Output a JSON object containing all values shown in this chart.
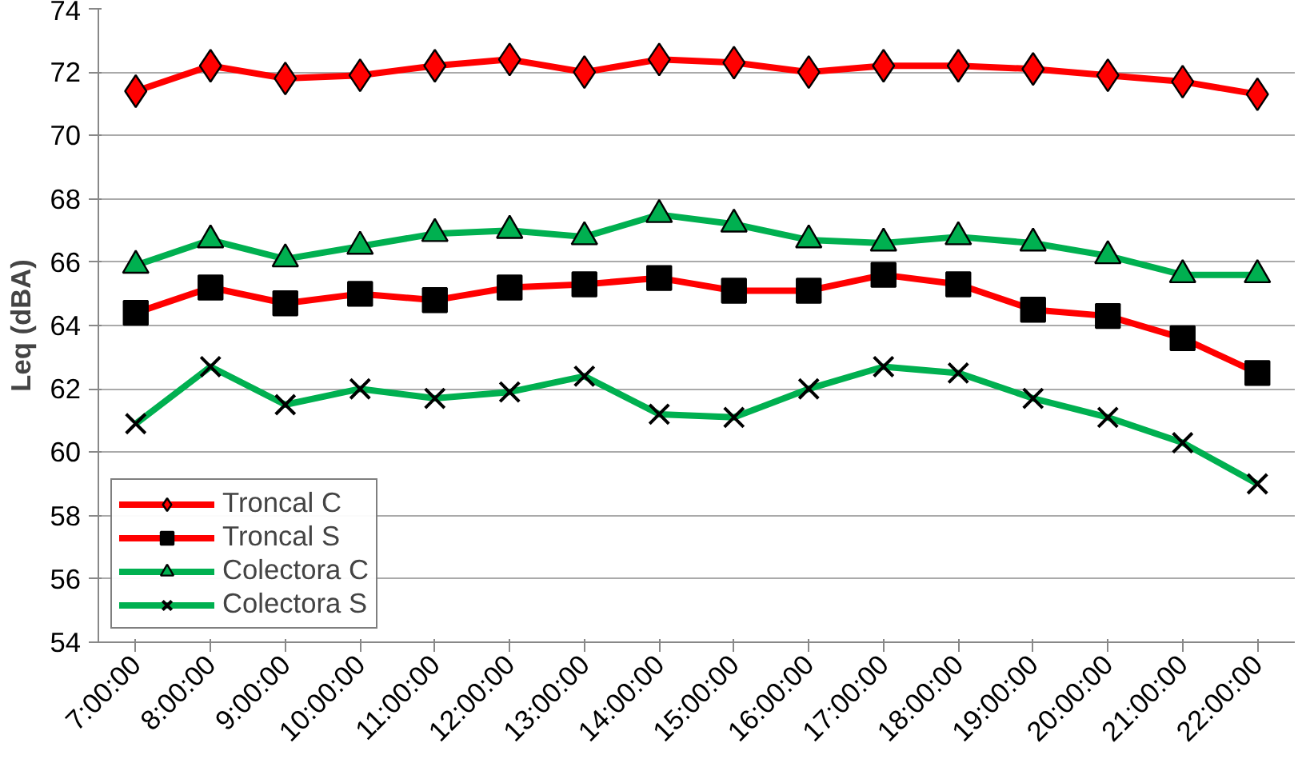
{
  "chart_data": {
    "type": "line",
    "ylabel": "Leq (dBA)",
    "categories": [
      "7:00:00",
      "8:00:00",
      "9:00:00",
      "10:00:00",
      "11:00:00",
      "12:00:00",
      "13:00:00",
      "14:00:00",
      "15:00:00",
      "16:00:00",
      "17:00:00",
      "18:00:00",
      "19:00:00",
      "20:00:00",
      "21:00:00",
      "22:00:00"
    ],
    "series": [
      {
        "name": "Troncal C",
        "color": "#ff0000",
        "marker": "diamond",
        "values": [
          71.4,
          72.2,
          71.8,
          71.9,
          72.2,
          72.4,
          72.0,
          72.4,
          72.3,
          72.0,
          72.2,
          72.2,
          72.1,
          71.9,
          71.7,
          71.3
        ]
      },
      {
        "name": "Troncal S",
        "color": "#ff0000",
        "marker": "square",
        "values": [
          64.4,
          65.2,
          64.7,
          65.0,
          64.8,
          65.2,
          65.3,
          65.5,
          65.1,
          65.1,
          65.6,
          65.3,
          64.5,
          64.3,
          63.6,
          62.5
        ]
      },
      {
        "name": "Colectora C",
        "color": "#00b050",
        "marker": "triangle",
        "values": [
          65.9,
          66.7,
          66.1,
          66.5,
          66.9,
          67.0,
          66.8,
          67.5,
          67.2,
          66.7,
          66.6,
          66.8,
          66.6,
          66.2,
          65.6,
          65.6
        ]
      },
      {
        "name": "Colectora S",
        "color": "#00b050",
        "marker": "cross",
        "values": [
          60.9,
          62.7,
          61.5,
          62.0,
          61.7,
          61.9,
          62.4,
          61.2,
          61.1,
          62.0,
          62.7,
          62.5,
          61.7,
          61.1,
          60.3,
          59.0
        ]
      }
    ],
    "ylim": [
      54,
      74
    ],
    "yticks": [
      54,
      56,
      58,
      60,
      62,
      64,
      66,
      68,
      70,
      72,
      74
    ],
    "grid": "y",
    "legend": "bottom left"
  }
}
